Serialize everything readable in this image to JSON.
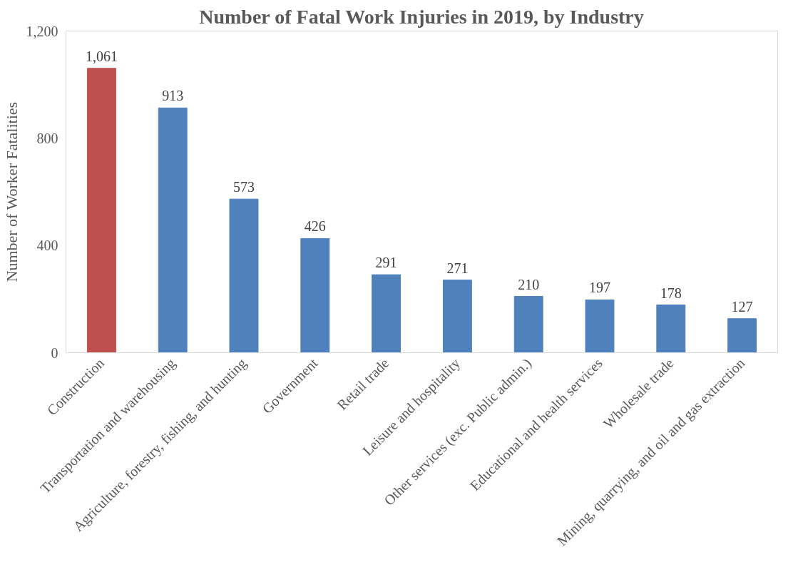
{
  "chart_data": {
    "type": "bar",
    "title": "Number of Fatal Work Injuries in 2019, by Industry",
    "ylabel": "Number of Worker Fatalities",
    "categories": [
      "Construction",
      "Transportation and warehousing",
      "Agriculture, forestry, fishing, and hunting",
      "Government",
      "Retail trade",
      "Leisure and hospitality",
      "Other services (exc. Public admin.)",
      "Educational and health services",
      "Wholesale trade",
      "Mining, quarrying, and oil and gas extraction"
    ],
    "values": [
      1061,
      913,
      573,
      426,
      291,
      271,
      210,
      197,
      178,
      127
    ],
    "colors": [
      "#c0504d",
      "#4f81bd",
      "#4f81bd",
      "#4f81bd",
      "#4f81bd",
      "#4f81bd",
      "#4f81bd",
      "#4f81bd",
      "#4f81bd",
      "#4f81bd"
    ],
    "value_labels": [
      "1,061",
      "913",
      "573",
      "426",
      "291",
      "271",
      "210",
      "197",
      "178",
      "127"
    ],
    "ylim": [
      0,
      1200
    ],
    "yticks": [
      0,
      400,
      800,
      {
        "value": 1200,
        "label": "1,200"
      }
    ],
    "grid": false
  }
}
